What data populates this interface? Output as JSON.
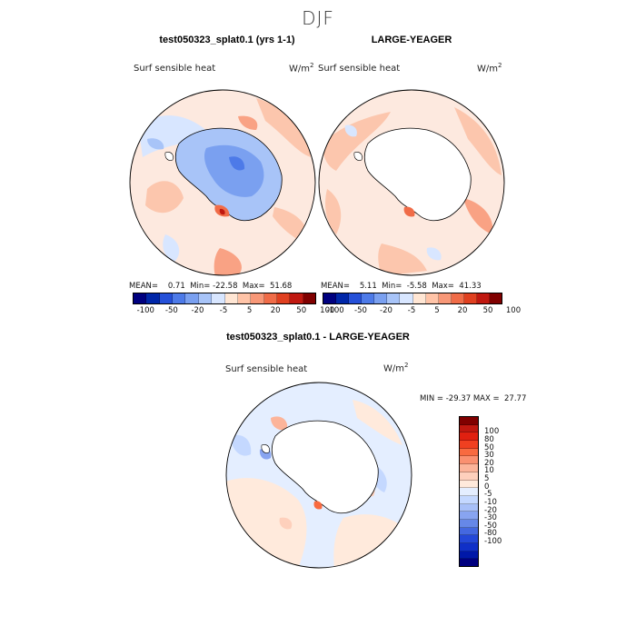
{
  "figure": {
    "season": "DJF"
  },
  "panels": [
    {
      "title": "test050323_splat0.1 (yrs 1-1)",
      "variable": "Surf sensible heat",
      "units_base": "W/m",
      "units_exp": "2",
      "mean_label": "MEAN=",
      "mean": "0.71",
      "min_label": "Min=",
      "min": "-22.58",
      "max_label": "Max=",
      "max": "51.68",
      "field": "mixed-blue-continent"
    },
    {
      "title": "LARGE-YEAGER",
      "variable": "Surf sensible heat",
      "units_base": "W/m",
      "units_exp": "2",
      "mean_label": "MEAN=",
      "mean": "5.11",
      "min_label": "Min=",
      "min": "-5.58",
      "max_label": "Max=",
      "max": "41.33",
      "field": "mostly-warm-ocean"
    },
    {
      "title": "test050323_splat0.1 - LARGE-YEAGER",
      "variable": "Surf sensible heat",
      "units_base": "W/m",
      "units_exp": "2",
      "minmax_text": "MIN = -29.37 MAX =  27.77",
      "field": "difference"
    }
  ],
  "small_colorbar": {
    "colors": [
      "#00007f",
      "#0026a8",
      "#2550d8",
      "#4d7ae8",
      "#7aa0f0",
      "#a8c4f8",
      "#d8e6ff",
      "#ffe6d4",
      "#ffc4a8",
      "#f89878",
      "#f06c48",
      "#e04020",
      "#c01810",
      "#800000"
    ],
    "ticks": [
      "-100",
      "-50",
      "-20",
      "-5",
      "5",
      "20",
      "50",
      "100"
    ]
  },
  "large_colorbar": {
    "colors": [
      "#800000",
      "#c01810",
      "#e02010",
      "#f04020",
      "#f86a40",
      "#fa9070",
      "#fcb49a",
      "#fed0bc",
      "#ffeadc",
      "#e4eeff",
      "#c4d8ff",
      "#a8c0f8",
      "#88a4f0",
      "#6688e8",
      "#4468e0",
      "#2448d8",
      "#1030c8",
      "#0018a8",
      "#00007f"
    ],
    "ticks": [
      "100",
      "80",
      "50",
      "30",
      "20",
      "10",
      "5",
      "0",
      "-5",
      "-10",
      "-20",
      "-30",
      "-50",
      "-80",
      "-100"
    ]
  }
}
